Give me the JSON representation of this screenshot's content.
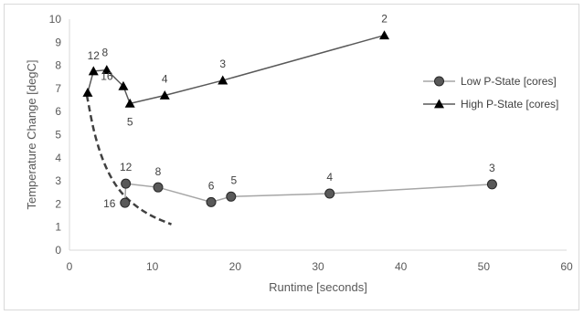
{
  "chart_data": {
    "type": "scatter",
    "xlabel": "Runtime [seconds]",
    "ylabel": "Temperature Change [degC]",
    "xlim": [
      0,
      60
    ],
    "ylim": [
      0,
      10
    ],
    "x_ticks": [
      "0",
      "10",
      "20",
      "30",
      "40",
      "50",
      "60"
    ],
    "y_ticks": [
      "0",
      "1",
      "2",
      "3",
      "4",
      "5",
      "6",
      "7",
      "8",
      "9",
      "10"
    ],
    "grid": false,
    "legend_position": "right",
    "series": [
      {
        "name": "Low P-State [cores]",
        "marker": "circle",
        "color": "#595959",
        "line_color": "#a6a6a6",
        "points": [
          {
            "x": 6.7,
            "y": 2.05,
            "label": "16"
          },
          {
            "x": 6.8,
            "y": 2.88,
            "label": "12"
          },
          {
            "x": 10.7,
            "y": 2.72,
            "label": "8"
          },
          {
            "x": 17.1,
            "y": 2.08,
            "label": "6"
          },
          {
            "x": 19.5,
            "y": 2.32,
            "label": "5"
          },
          {
            "x": 31.4,
            "y": 2.45,
            "label": "4"
          },
          {
            "x": 51.0,
            "y": 2.85,
            "label": "3"
          }
        ]
      },
      {
        "name": "High P-State [cores]",
        "marker": "triangle",
        "color": "#000000",
        "line_color": "#595959",
        "points": [
          {
            "x": 2.2,
            "y": 6.82,
            "label": ""
          },
          {
            "x": 2.9,
            "y": 7.75,
            "label": "12"
          },
          {
            "x": 4.5,
            "y": 7.8,
            "label": "8"
          },
          {
            "x": 6.5,
            "y": 7.1,
            "label": "16"
          },
          {
            "x": 7.3,
            "y": 6.35,
            "label": "5"
          },
          {
            "x": 11.5,
            "y": 6.7,
            "label": "4"
          },
          {
            "x": 18.5,
            "y": 7.35,
            "label": "3"
          },
          {
            "x": 38.0,
            "y": 9.3,
            "label": "2"
          }
        ]
      }
    ],
    "trend_curve": {
      "style": "dashed",
      "color": "#404040",
      "points": [
        [
          2.1,
          6.7
        ],
        [
          3.0,
          5.0
        ],
        [
          4.3,
          3.6
        ],
        [
          6.0,
          2.55
        ],
        [
          8.0,
          1.9
        ],
        [
          10.0,
          1.45
        ],
        [
          12.3,
          1.12
        ]
      ]
    }
  }
}
